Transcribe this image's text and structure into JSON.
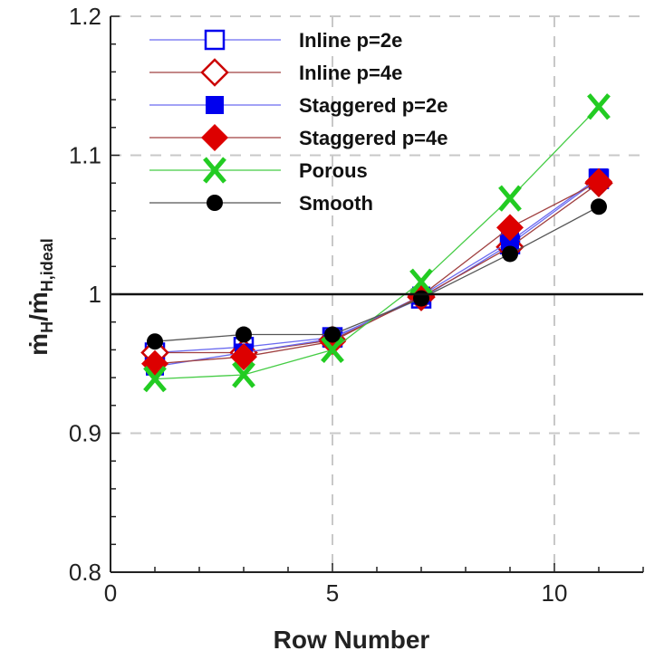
{
  "chart_data": {
    "type": "line",
    "title": "",
    "xlabel": "Row Number",
    "ylabel": "ṁH/ṁH,ideal",
    "ylabel_main": "ṁ",
    "ylabel_sub1": "H",
    "ylabel_sub2": "H,ideal",
    "xlim": [
      0,
      12
    ],
    "ylim": [
      0.8,
      1.2
    ],
    "xticks": [
      0,
      5,
      10
    ],
    "xtick_labels": [
      "0",
      "5",
      "10"
    ],
    "yticks": [
      0.8,
      0.9,
      1.0,
      1.1,
      1.2
    ],
    "ytick_labels": [
      "0.8",
      "0.9",
      "1",
      "1.1",
      "1.2"
    ],
    "grid": true,
    "reference_line": 1.0,
    "legend_position": "top-left",
    "x": [
      1,
      3,
      5,
      7,
      9,
      11
    ],
    "series": [
      {
        "name": "Inline p=2e",
        "marker": "square-open",
        "color": "#0000ee",
        "line_color": "#6b6bf0",
        "values": [
          0.958,
          0.962,
          0.969,
          0.997,
          1.036,
          1.083
        ]
      },
      {
        "name": "Inline p=4e",
        "marker": "diamond-open",
        "color": "#cc0000",
        "line_color": "#a04040",
        "values": [
          0.958,
          0.958,
          0.967,
          0.998,
          1.034,
          1.08
        ]
      },
      {
        "name": "Staggered p=2e",
        "marker": "square-filled",
        "color": "#0000ee",
        "line_color": "#6b6bf0",
        "values": [
          0.948,
          0.958,
          0.968,
          0.999,
          1.038,
          1.084
        ]
      },
      {
        "name": "Staggered p=4e",
        "marker": "diamond-filled",
        "color": "#dd0000",
        "line_color": "#a04040",
        "values": [
          0.95,
          0.955,
          0.966,
          0.999,
          1.048,
          1.081
        ]
      },
      {
        "name": "Porous",
        "marker": "x",
        "color": "#22cc22",
        "line_color": "#44cc44",
        "values": [
          0.939,
          0.942,
          0.96,
          1.009,
          1.069,
          1.135
        ]
      },
      {
        "name": "Smooth",
        "marker": "circle-filled",
        "color": "#000000",
        "line_color": "#555555",
        "values": [
          0.966,
          0.971,
          0.971,
          0.997,
          1.029,
          1.063
        ]
      }
    ]
  }
}
